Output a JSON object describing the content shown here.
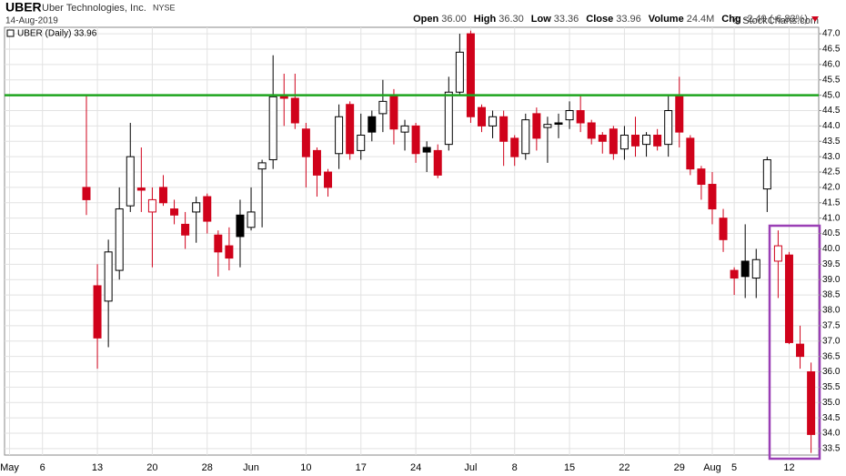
{
  "header": {
    "symbol": "UBER",
    "name": "Uber Technologies, Inc.",
    "exchange": "NYSE",
    "date": "14-Aug-2019",
    "credit": "© StockCharts.com",
    "stats": [
      {
        "label": "Open",
        "value": "36.00"
      },
      {
        "label": "High",
        "value": "36.30"
      },
      {
        "label": "Low",
        "value": "33.36"
      },
      {
        "label": "Close",
        "value": "33.96"
      },
      {
        "label": "Volume",
        "value": "24.4M"
      },
      {
        "label": "Chg",
        "value": "-2.49 (-6.83%)"
      }
    ]
  },
  "chart_data": {
    "type": "candlestick",
    "legend": "UBER (Daily) 33.96",
    "categories": [
      "May",
      null,
      null,
      "6",
      null,
      null,
      null,
      null,
      "13",
      null,
      null,
      null,
      null,
      "20",
      null,
      null,
      null,
      null,
      "28",
      null,
      null,
      null,
      "Jun",
      null,
      null,
      null,
      null,
      "10",
      null,
      null,
      null,
      null,
      "17",
      null,
      null,
      null,
      null,
      "24",
      null,
      null,
      null,
      null,
      "Jul",
      null,
      null,
      null,
      "8",
      null,
      null,
      null,
      null,
      "15",
      null,
      null,
      null,
      null,
      "22",
      null,
      null,
      null,
      null,
      "29",
      null,
      null,
      "Aug",
      null,
      "5",
      null,
      null,
      null,
      null,
      "12",
      null,
      null
    ],
    "open": [
      null,
      null,
      null,
      null,
      null,
      null,
      null,
      42.0,
      38.8,
      38.3,
      39.3,
      41.4,
      41.98,
      41.2,
      42.0,
      41.3,
      40.8,
      41.2,
      41.7,
      40.45,
      40.1,
      41.1,
      40.7,
      42.6,
      42.9,
      45.0,
      44.9,
      43.9,
      43.2,
      42.5,
      43.1,
      44.7,
      43.2,
      44.3,
      44.4,
      45.0,
      43.8,
      44.0,
      43.3,
      43.2,
      43.4,
      45.1,
      47.0,
      44.6,
      44.0,
      44.3,
      43.6,
      43.1,
      44.4,
      43.95,
      44.1,
      44.2,
      44.5,
      44.1,
      43.7,
      43.9,
      43.25,
      43.7,
      43.4,
      43.7,
      43.4,
      45.0,
      43.6,
      42.6,
      42.1,
      41.0,
      39.3,
      39.6,
      39.05,
      41.95,
      39.6,
      39.8,
      36.9,
      36.0
    ],
    "high": [
      null,
      null,
      null,
      null,
      null,
      null,
      null,
      45.0,
      39.5,
      40.3,
      42.0,
      44.1,
      43.3,
      42.0,
      42.4,
      41.6,
      41.2,
      41.7,
      41.8,
      40.6,
      40.7,
      41.6,
      42.0,
      42.9,
      46.3,
      45.7,
      45.7,
      44.1,
      43.3,
      42.6,
      44.7,
      44.8,
      44.4,
      44.5,
      45.5,
      45.2,
      44.2,
      44.1,
      43.5,
      43.4,
      45.6,
      47.0,
      47.1,
      44.7,
      44.5,
      44.5,
      43.7,
      44.4,
      44.6,
      44.3,
      44.4,
      44.8,
      45.0,
      44.2,
      43.8,
      44.0,
      44.0,
      44.3,
      43.8,
      43.9,
      45.0,
      45.6,
      43.7,
      42.7,
      42.5,
      41.3,
      39.4,
      40.8,
      40.0,
      43.0,
      40.6,
      39.9,
      37.5,
      36.3
    ],
    "low": [
      null,
      null,
      null,
      null,
      null,
      null,
      null,
      41.1,
      36.1,
      36.8,
      39.0,
      41.2,
      41.2,
      39.4,
      41.4,
      40.8,
      40.0,
      40.2,
      40.5,
      39.1,
      39.3,
      39.4,
      40.6,
      40.7,
      42.6,
      44.0,
      43.9,
      42.0,
      41.7,
      41.7,
      42.6,
      42.9,
      42.9,
      43.5,
      43.8,
      43.4,
      43.2,
      42.8,
      42.5,
      42.3,
      43.2,
      45.0,
      44.1,
      43.8,
      43.6,
      42.7,
      42.7,
      42.9,
      43.2,
      42.8,
      43.6,
      43.9,
      43.8,
      43.4,
      43.1,
      42.9,
      42.9,
      43.0,
      43.0,
      43.2,
      43.0,
      43.3,
      42.4,
      41.6,
      40.8,
      39.9,
      38.5,
      38.4,
      38.4,
      41.2,
      38.4,
      36.9,
      36.1,
      33.36
    ],
    "close": [
      null,
      null,
      null,
      null,
      null,
      null,
      null,
      41.6,
      37.1,
      39.9,
      41.3,
      43.0,
      41.91,
      41.6,
      41.5,
      41.1,
      40.45,
      41.5,
      40.9,
      39.9,
      39.7,
      40.4,
      41.2,
      42.8,
      44.95,
      44.9,
      44.1,
      43.0,
      42.4,
      42.0,
      44.3,
      43.1,
      43.7,
      43.8,
      44.8,
      43.9,
      44.0,
      43.1,
      43.15,
      42.4,
      45.1,
      46.4,
      44.3,
      44.0,
      44.3,
      43.5,
      43.0,
      44.2,
      43.6,
      44.05,
      44.06,
      44.5,
      44.1,
      43.6,
      43.5,
      43.1,
      43.7,
      43.35,
      43.7,
      43.35,
      44.5,
      43.8,
      42.6,
      42.1,
      41.3,
      40.3,
      39.05,
      39.1,
      39.65,
      42.9,
      40.1,
      36.95,
      36.5,
      33.96
    ],
    "colors": {
      "up": "#000000",
      "down": "#d0021b"
    },
    "hline": {
      "value": 45.0,
      "color": "#1fa51f"
    },
    "ylim": [
      33.29,
      47.21
    ],
    "yticks": [
      {
        "value": 33.5,
        "label": "33.5"
      },
      {
        "value": 34,
        "label": "34.0"
      },
      34.5,
      {
        "value": 35,
        "label": "35.0"
      },
      35.5,
      {
        "value": 36,
        "label": "36.0"
      },
      36.5,
      {
        "value": 37,
        "label": "37.0"
      },
      37.5,
      {
        "value": 38,
        "label": "38.0"
      },
      38.5,
      {
        "value": 39,
        "label": "39.0"
      },
      39.5,
      {
        "value": 40,
        "label": "40.0"
      },
      40.5,
      {
        "value": 41,
        "label": "41.0"
      },
      41.5,
      {
        "value": 42,
        "label": "42.0"
      },
      42.5,
      {
        "value": 43,
        "label": "43.0"
      },
      43.5,
      {
        "value": 44,
        "label": "44.0"
      },
      44.5,
      {
        "value": 45,
        "label": "45.0"
      },
      45.5,
      {
        "value": 46,
        "label": "46.0"
      },
      46.5,
      {
        "value": 47,
        "label": "47.0"
      }
    ],
    "grid": true
  }
}
